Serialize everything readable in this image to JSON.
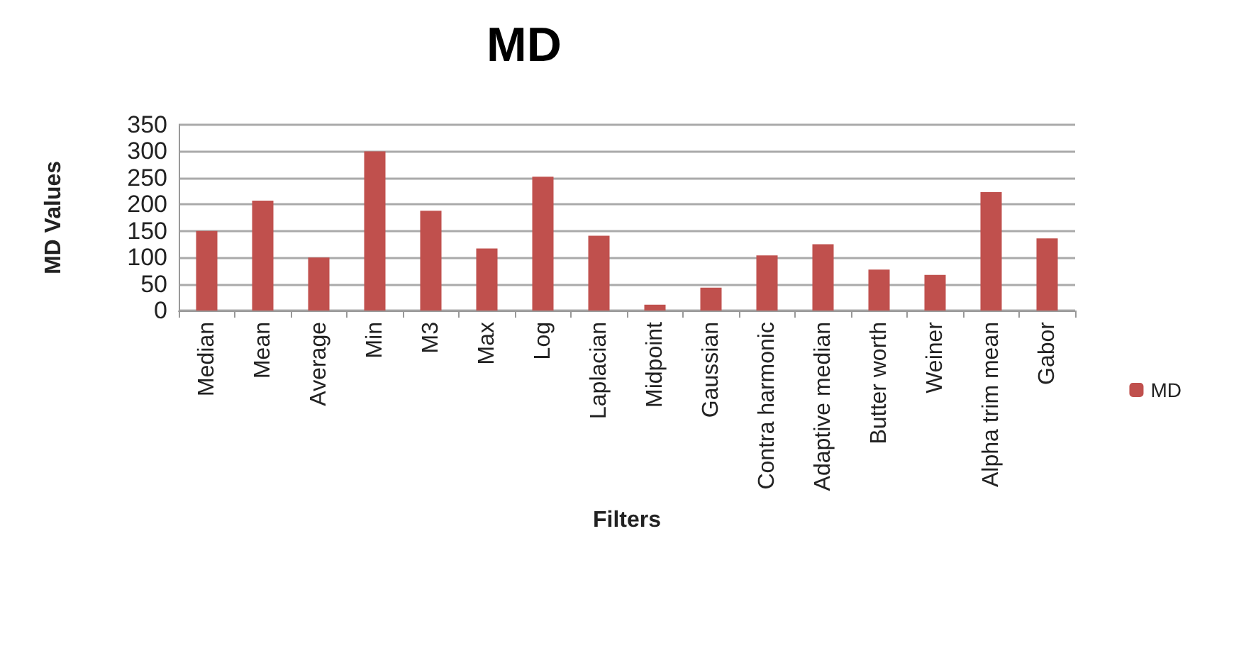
{
  "chart_data": {
    "type": "bar",
    "title": "MD",
    "xlabel": "Filters",
    "ylabel": "MD Values",
    "categories": [
      "Median",
      "Mean",
      "Average",
      "Min",
      "M3",
      "Max",
      "Log",
      "Laplacian",
      "Midpoint",
      "Gaussian",
      "Contra harmonic",
      "Adaptive median",
      "Butter worth",
      "Weiner",
      "Alpha trim mean",
      "Gabor"
    ],
    "series": [
      {
        "name": "MD",
        "color": "#c0504d",
        "values": [
          150,
          207,
          100,
          300,
          188,
          117,
          252,
          141,
          11,
          43,
          104,
          125,
          77,
          67,
          223,
          136
        ]
      }
    ],
    "ylim": [
      0,
      350
    ],
    "yticks": [
      0,
      50,
      100,
      150,
      200,
      250,
      300,
      350
    ],
    "grid": "y",
    "legend": "right"
  }
}
